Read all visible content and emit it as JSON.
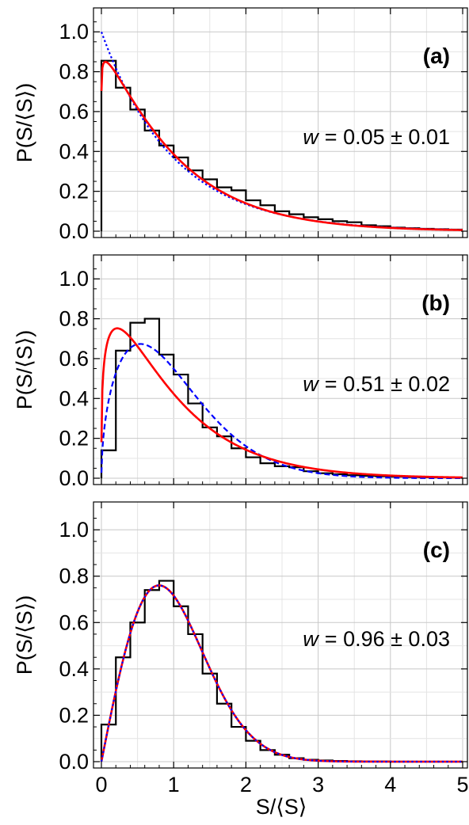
{
  "xlabel": "S/⟨S⟩",
  "ylabel": "P(S/⟨S⟩)",
  "chart_data": [
    {
      "type": "line",
      "panel_label": "(a)",
      "annotation": {
        "symbol": "w",
        "text": "=  0.05 ± 0.01"
      },
      "xlim": [
        0,
        5
      ],
      "ylim": [
        0,
        1.12
      ],
      "xticks": [
        0,
        1,
        2,
        3,
        4,
        5
      ],
      "yticks": [
        0.0,
        0.2,
        0.4,
        0.6,
        0.8,
        1.0
      ],
      "ytick_labels": [
        "0.0",
        "0.2",
        "0.4",
        "0.6",
        "0.8",
        "1.0"
      ],
      "xtick_labels_shown": false,
      "grid": true,
      "histogram": {
        "bin_width": 0.2,
        "heights": [
          0.855,
          0.72,
          0.61,
          0.505,
          0.43,
          0.37,
          0.305,
          0.26,
          0.22,
          0.205,
          0.155,
          0.13,
          0.1,
          0.085,
          0.07,
          0.06,
          0.05,
          0.045,
          0.03,
          0.025,
          0.018,
          0.015,
          0.012,
          0.01,
          0.008
        ]
      },
      "fits": [
        {
          "model": "exp",
          "w": 0.05,
          "style": "dotted",
          "color": "#0000ff"
        },
        {
          "model": "weibull",
          "w": 0.05,
          "style": "solid",
          "color": "#ff0000"
        }
      ]
    },
    {
      "type": "line",
      "panel_label": "(b)",
      "annotation": {
        "symbol": "w",
        "text": "=  0.51 ± 0.02"
      },
      "xlim": [
        0,
        5
      ],
      "ylim": [
        0,
        1.12
      ],
      "xticks": [
        0,
        1,
        2,
        3,
        4,
        5
      ],
      "yticks": [
        0.0,
        0.2,
        0.4,
        0.6,
        0.8,
        1.0
      ],
      "ytick_labels": [
        "0.0",
        "0.2",
        "0.4",
        "0.6",
        "0.8",
        "1.0"
      ],
      "xtick_labels_shown": false,
      "grid": true,
      "histogram": {
        "bin_width": 0.2,
        "heights": [
          0.14,
          0.64,
          0.78,
          0.8,
          0.62,
          0.52,
          0.375,
          0.255,
          0.21,
          0.15,
          0.105,
          0.075,
          0.06,
          0.055,
          0.035,
          0.025,
          0.02,
          0.015,
          0.012,
          0.01,
          0.008,
          0.006,
          0.005,
          0.004,
          0.003
        ]
      },
      "fits": [
        {
          "model": "weibull",
          "w": 0.51,
          "style": "dashed",
          "color": "#0000ff"
        },
        {
          "model": "alt",
          "w": 0.51,
          "style": "solid",
          "color": "#ff0000"
        }
      ]
    },
    {
      "type": "line",
      "panel_label": "(c)",
      "annotation": {
        "symbol": "w",
        "text": "=  0.96 ± 0.03"
      },
      "xlim": [
        0,
        5
      ],
      "ylim": [
        0,
        1.12
      ],
      "xticks": [
        0,
        1,
        2,
        3,
        4,
        5
      ],
      "xtick_labels": [
        "0",
        "1",
        "2",
        "3",
        "4",
        "5"
      ],
      "yticks": [
        0.0,
        0.2,
        0.4,
        0.6,
        0.8,
        1.0
      ],
      "ytick_labels": [
        "0.0",
        "0.2",
        "0.4",
        "0.6",
        "0.8",
        "1.0"
      ],
      "xtick_labels_shown": true,
      "grid": true,
      "histogram": {
        "bin_width": 0.2,
        "heights": [
          0.16,
          0.45,
          0.6,
          0.74,
          0.78,
          0.67,
          0.55,
          0.38,
          0.25,
          0.15,
          0.09,
          0.05,
          0.03,
          0.015,
          0.008,
          0.005,
          0.003,
          0.002,
          0.001,
          0.001,
          0.0,
          0.0,
          0.0,
          0.0,
          0.0
        ]
      },
      "fits": [
        {
          "model": "wigner",
          "w": 0.96,
          "style": "solid",
          "color": "#ff0000"
        },
        {
          "model": "wigner",
          "w": 0.96,
          "style": "dotted",
          "color": "#0000ff"
        }
      ]
    }
  ]
}
